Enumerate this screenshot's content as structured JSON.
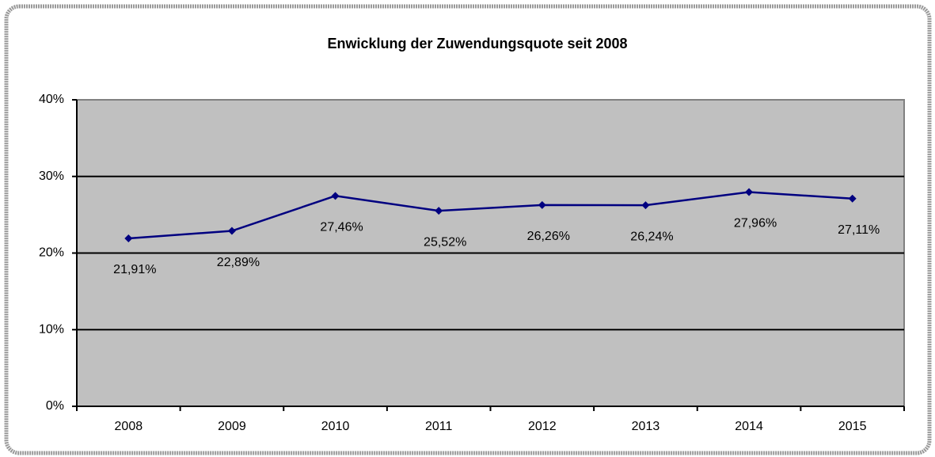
{
  "chart_data": {
    "type": "line",
    "title": "Enwicklung der Zuwendungsquote seit 2008",
    "categories": [
      "2008",
      "2009",
      "2010",
      "2011",
      "2012",
      "2013",
      "2014",
      "2015"
    ],
    "series": [
      {
        "name": "Zuwendungsquote",
        "color": "#000080",
        "values": [
          21.91,
          22.89,
          27.46,
          25.52,
          26.26,
          26.24,
          27.96,
          27.11
        ],
        "value_labels": [
          "21,91%",
          "22,89%",
          "27,46%",
          "25,52%",
          "26,26%",
          "26,24%",
          "27,96%",
          "27,11%"
        ]
      }
    ],
    "ylim": [
      0,
      40
    ],
    "yticks": [
      {
        "value": 0,
        "label": "0%"
      },
      {
        "value": 10,
        "label": "10%"
      },
      {
        "value": 20,
        "label": "20%"
      },
      {
        "value": 30,
        "label": "30%"
      },
      {
        "value": 40,
        "label": "40%"
      }
    ],
    "grid": true,
    "plot_background": "#c0c0c0"
  }
}
